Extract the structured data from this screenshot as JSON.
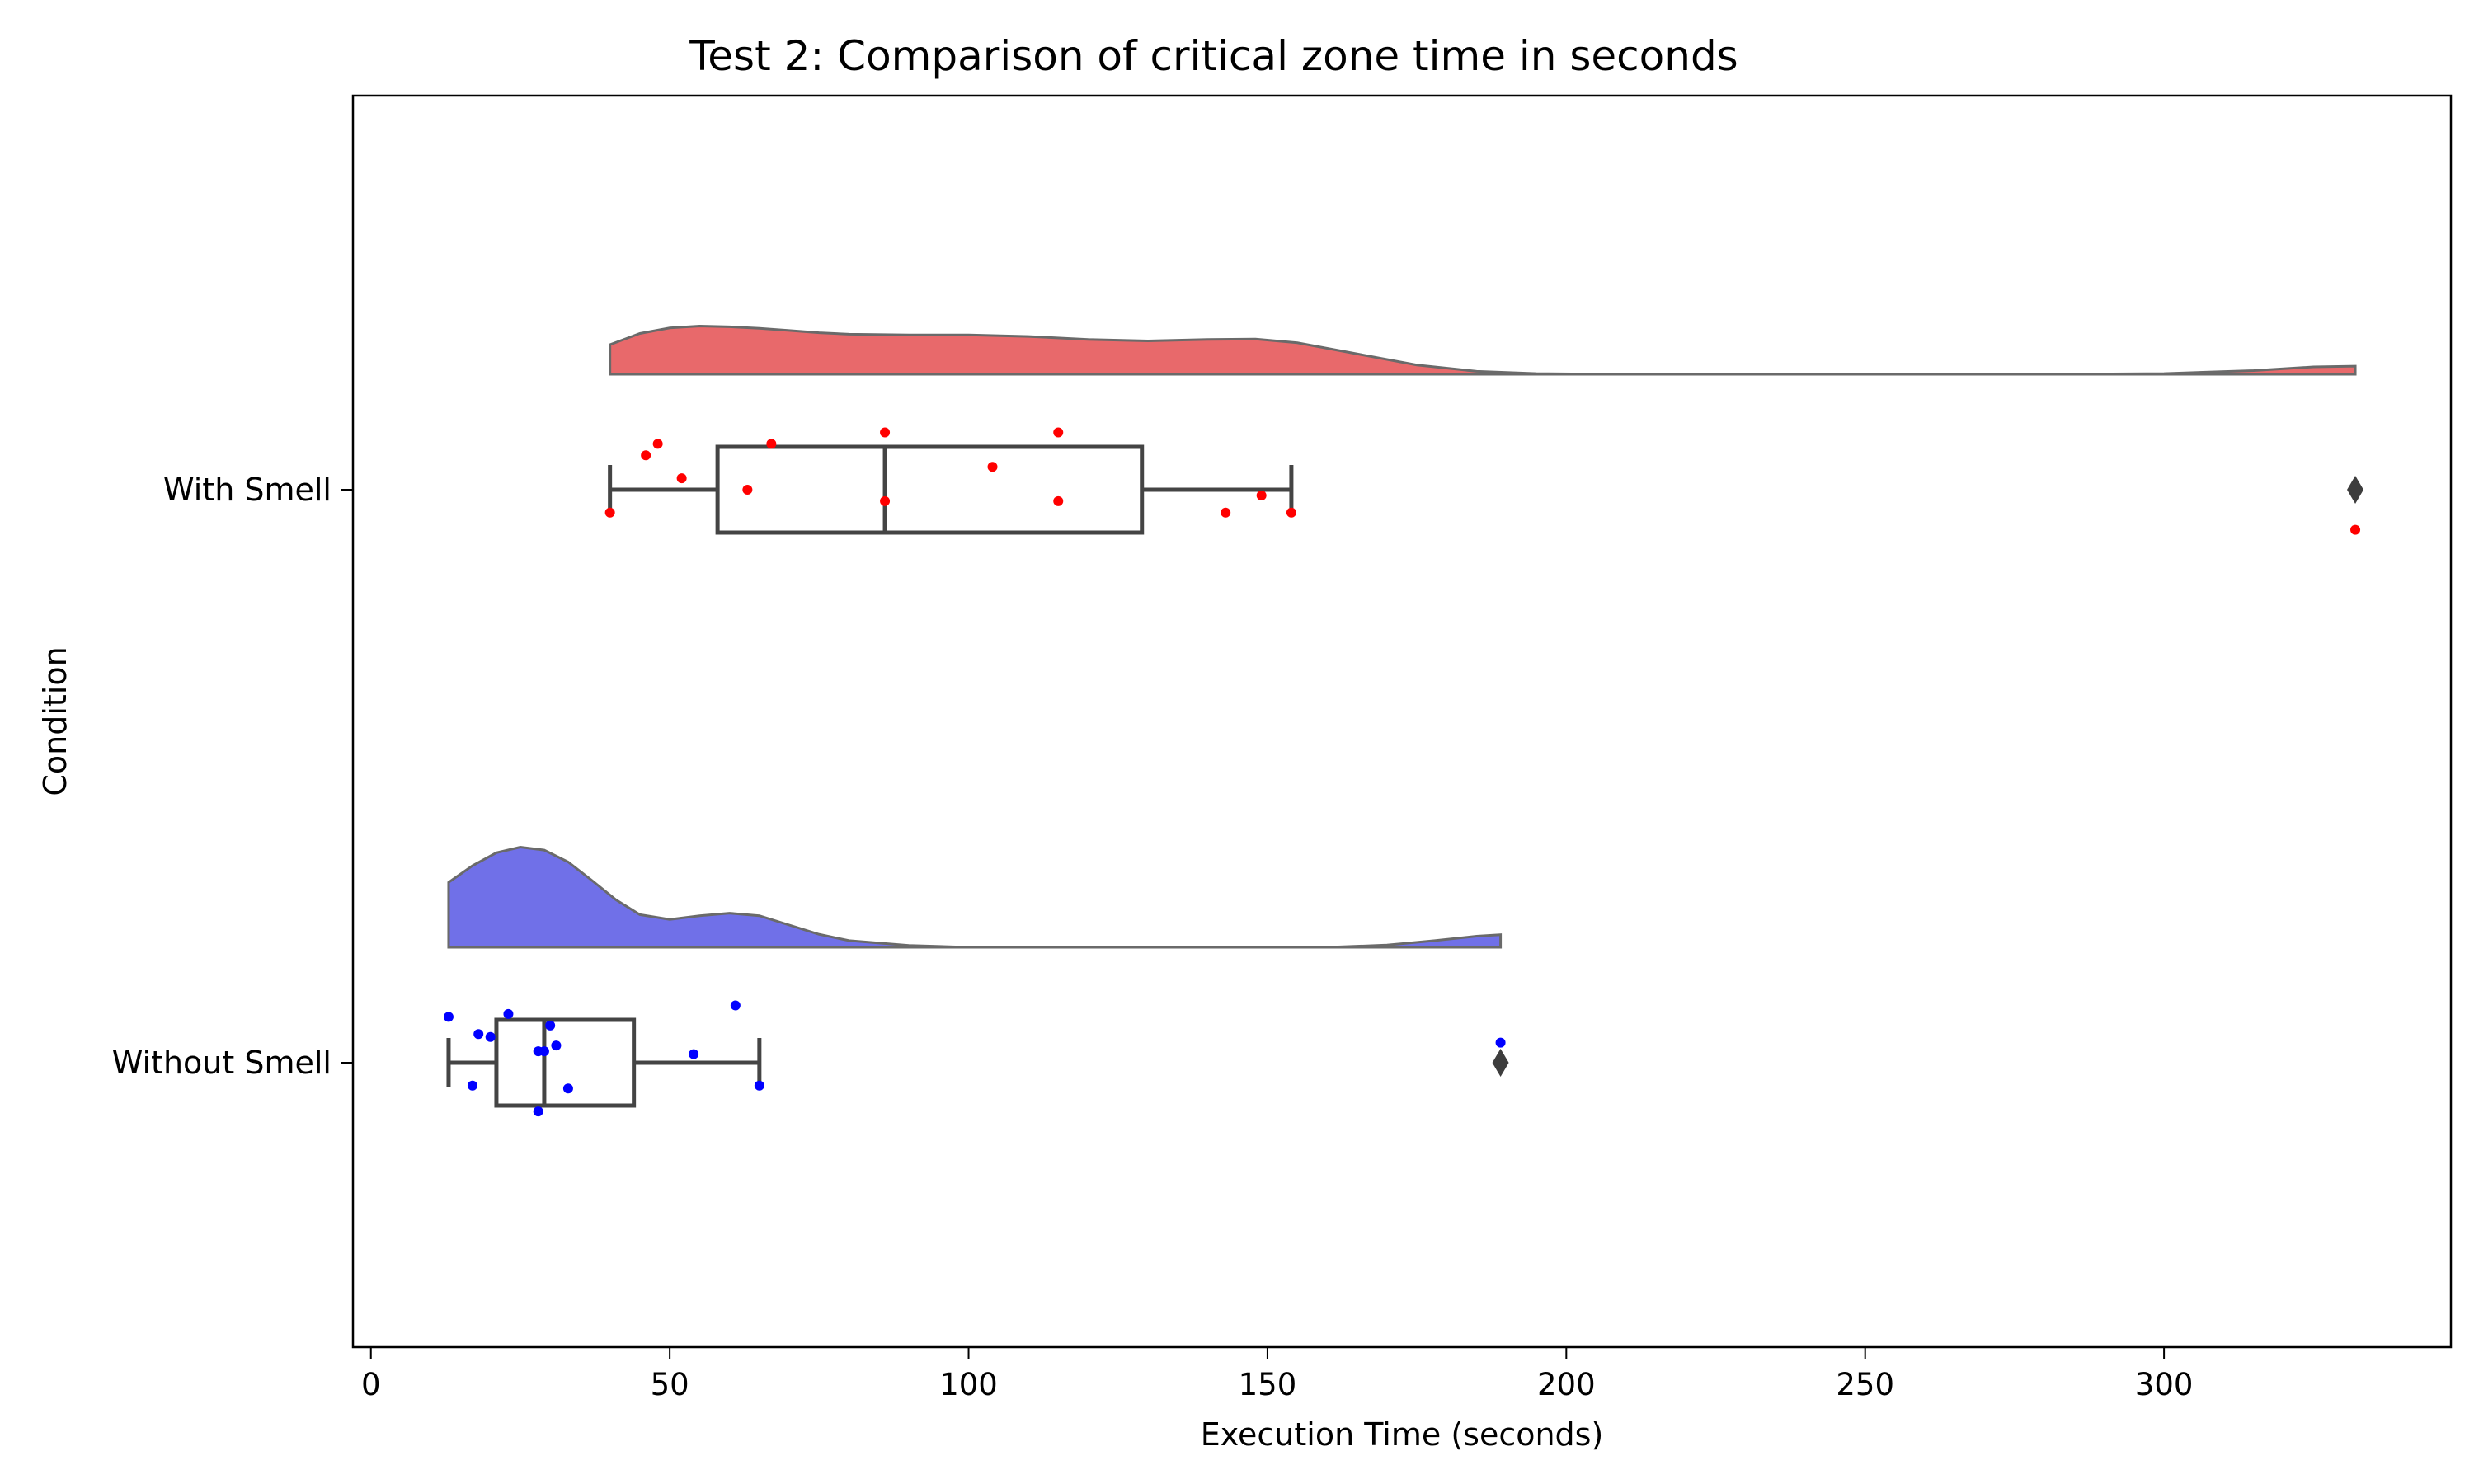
{
  "chart_data": {
    "type": "raincloud",
    "title": "Test 2: Comparison of critical zone time in seconds",
    "xlabel": "Execution Time (seconds)",
    "ylabel": "Condition",
    "xlim": [
      -3,
      348
    ],
    "xticks": [
      0,
      50,
      100,
      150,
      200,
      250,
      300
    ],
    "orientation": "horizontal",
    "grid": false,
    "series": [
      {
        "name": "With Smell",
        "color": "#e8696b",
        "point_color": "#ff0000",
        "box": {
          "whisker_low": 40,
          "q1": 58,
          "median": 86,
          "q3": 129,
          "whisker_high": 154,
          "outliers": [
            332
          ]
        },
        "points": [
          {
            "x": 40,
            "jitter": 0.04
          },
          {
            "x": 46,
            "jitter": -0.06
          },
          {
            "x": 48,
            "jitter": -0.08
          },
          {
            "x": 52,
            "jitter": -0.02
          },
          {
            "x": 63,
            "jitter": 0.0
          },
          {
            "x": 67,
            "jitter": -0.08
          },
          {
            "x": 86,
            "jitter": -0.1
          },
          {
            "x": 86,
            "jitter": 0.02
          },
          {
            "x": 104,
            "jitter": -0.04
          },
          {
            "x": 115,
            "jitter": -0.1
          },
          {
            "x": 115,
            "jitter": 0.02
          },
          {
            "x": 143,
            "jitter": 0.04
          },
          {
            "x": 149,
            "jitter": 0.01
          },
          {
            "x": 154,
            "jitter": 0.04
          },
          {
            "x": 332,
            "jitter": 0.07
          }
        ],
        "density": [
          [
            40,
            0.08
          ],
          [
            45,
            0.11
          ],
          [
            50,
            0.125
          ],
          [
            55,
            0.13
          ],
          [
            60,
            0.128
          ],
          [
            65,
            0.124
          ],
          [
            70,
            0.118
          ],
          [
            75,
            0.112
          ],
          [
            80,
            0.108
          ],
          [
            90,
            0.106
          ],
          [
            100,
            0.106
          ],
          [
            110,
            0.102
          ],
          [
            120,
            0.094
          ],
          [
            130,
            0.09
          ],
          [
            140,
            0.094
          ],
          [
            148,
            0.095
          ],
          [
            155,
            0.085
          ],
          [
            165,
            0.055
          ],
          [
            175,
            0.025
          ],
          [
            185,
            0.008
          ],
          [
            195,
            0.002
          ],
          [
            210,
            0.0
          ],
          [
            240,
            0.0
          ],
          [
            280,
            0.0
          ],
          [
            300,
            0.002
          ],
          [
            315,
            0.01
          ],
          [
            325,
            0.02
          ],
          [
            332,
            0.022
          ]
        ]
      },
      {
        "name": "Without Smell",
        "color": "#7070e8",
        "point_color": "#0000ff",
        "box": {
          "whisker_low": 13,
          "q1": 21,
          "median": 29,
          "q3": 44,
          "whisker_high": 65,
          "outliers": [
            189
          ]
        },
        "points": [
          {
            "x": 13,
            "jitter": -0.08
          },
          {
            "x": 17,
            "jitter": 0.04
          },
          {
            "x": 18,
            "jitter": -0.05
          },
          {
            "x": 20,
            "jitter": -0.045
          },
          {
            "x": 23,
            "jitter": -0.085
          },
          {
            "x": 28,
            "jitter": -0.02
          },
          {
            "x": 28,
            "jitter": 0.085
          },
          {
            "x": 29,
            "jitter": -0.02
          },
          {
            "x": 30,
            "jitter": -0.065
          },
          {
            "x": 31,
            "jitter": -0.03
          },
          {
            "x": 33,
            "jitter": 0.045
          },
          {
            "x": 54,
            "jitter": -0.015
          },
          {
            "x": 61,
            "jitter": -0.1
          },
          {
            "x": 65,
            "jitter": 0.04
          },
          {
            "x": 189,
            "jitter": -0.035
          }
        ],
        "density": [
          [
            13,
            0.175
          ],
          [
            17,
            0.22
          ],
          [
            21,
            0.255
          ],
          [
            25,
            0.27
          ],
          [
            29,
            0.262
          ],
          [
            33,
            0.23
          ],
          [
            37,
            0.18
          ],
          [
            41,
            0.128
          ],
          [
            45,
            0.088
          ],
          [
            50,
            0.075
          ],
          [
            55,
            0.085
          ],
          [
            60,
            0.092
          ],
          [
            65,
            0.085
          ],
          [
            70,
            0.06
          ],
          [
            75,
            0.035
          ],
          [
            80,
            0.018
          ],
          [
            90,
            0.005
          ],
          [
            100,
            0.0
          ],
          [
            130,
            0.0
          ],
          [
            160,
            0.0
          ],
          [
            170,
            0.006
          ],
          [
            178,
            0.018
          ],
          [
            185,
            0.03
          ],
          [
            189,
            0.034
          ]
        ]
      }
    ]
  }
}
